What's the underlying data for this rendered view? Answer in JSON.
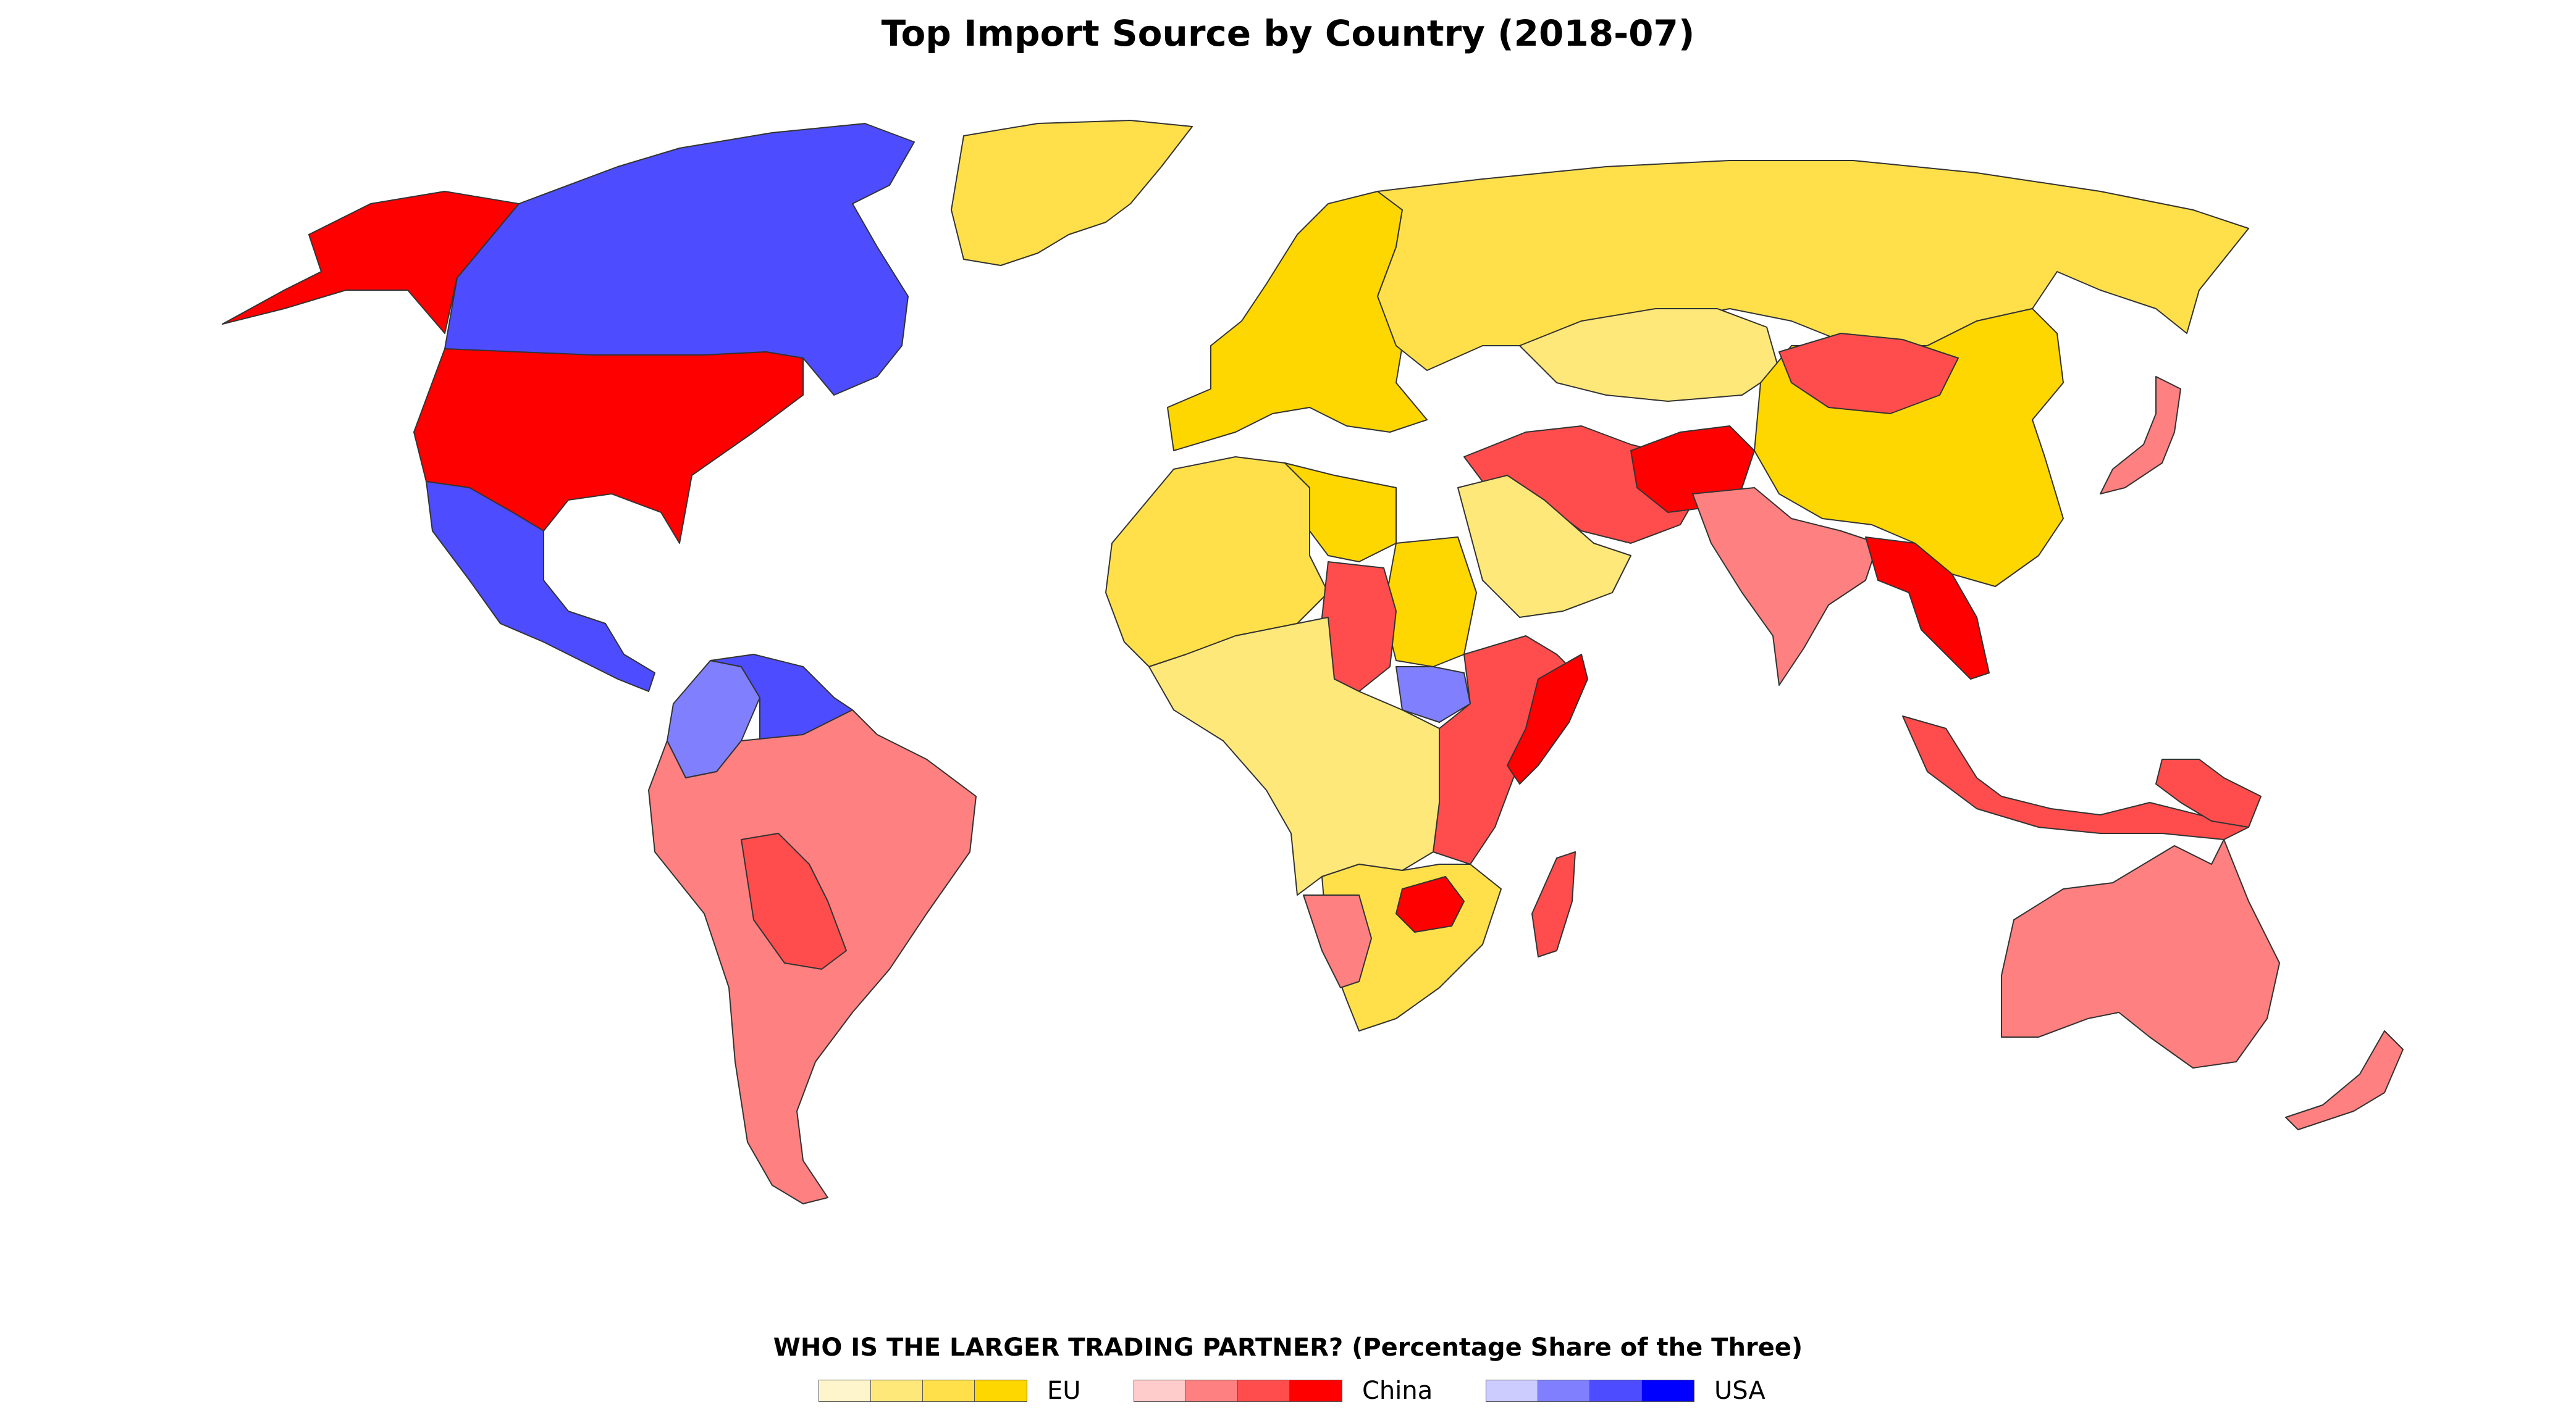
{
  "title": "Top Import Source by Country (2018-07)",
  "legend": {
    "heading": "WHO IS THE LARGER TRADING PARTNER? (Percentage Share of the Three)",
    "groups": [
      {
        "label": "EU",
        "colors": [
          "#fff5cc",
          "#ffe87a",
          "#ffe04a",
          "#ffd700"
        ]
      },
      {
        "label": "China",
        "colors": [
          "#ffcccc",
          "#ff8080",
          "#ff4d4d",
          "#ff0000"
        ]
      },
      {
        "label": "USA",
        "colors": [
          "#ccccff",
          "#8080ff",
          "#4d4dff",
          "#0000ff"
        ]
      }
    ]
  },
  "map_data": {
    "type": "choropleth",
    "regions": [
      {
        "name": "Canada",
        "partner": "USA",
        "level": 3
      },
      {
        "name": "Alaska",
        "partner": "China",
        "level": 4
      },
      {
        "name": "United States",
        "partner": "China",
        "level": 4
      },
      {
        "name": "Mexico and Central America",
        "partner": "USA",
        "level": 3
      },
      {
        "name": "Colombia",
        "partner": "USA",
        "level": 2
      },
      {
        "name": "Venezuela",
        "partner": "USA",
        "level": 3
      },
      {
        "name": "South America",
        "partner": "China",
        "level": 2
      },
      {
        "name": "Bolivia",
        "partner": "China",
        "level": 3
      },
      {
        "name": "Greenland",
        "partner": "EU",
        "level": 3
      },
      {
        "name": "Europe",
        "partner": "EU",
        "level": 4
      },
      {
        "name": "Russia",
        "partner": "EU",
        "level": 3
      },
      {
        "name": "Kazakhstan",
        "partner": "EU",
        "level": 2
      },
      {
        "name": "China",
        "partner": "EU",
        "level": 4
      },
      {
        "name": "Mongolia",
        "partner": "China",
        "level": 3
      },
      {
        "name": "Iran",
        "partner": "China",
        "level": 3
      },
      {
        "name": "Afghanistan",
        "partner": "China",
        "level": 4
      },
      {
        "name": "Saudi Arabia",
        "partner": "EU",
        "level": 2
      },
      {
        "name": "India",
        "partner": "China",
        "level": 2
      },
      {
        "name": "Southeast Asia",
        "partner": "China",
        "level": 4
      },
      {
        "name": "Indonesia",
        "partner": "China",
        "level": 3
      },
      {
        "name": "Japan",
        "partner": "China",
        "level": 2
      },
      {
        "name": "North Africa",
        "partner": "EU",
        "level": 3
      },
      {
        "name": "Libya",
        "partner": "EU",
        "level": 4
      },
      {
        "name": "Sudan",
        "partner": "EU",
        "level": 4
      },
      {
        "name": "Chad",
        "partner": "China",
        "level": 3
      },
      {
        "name": "South Sudan",
        "partner": "USA",
        "level": 2
      },
      {
        "name": "East Africa",
        "partner": "China",
        "level": 3
      },
      {
        "name": "Somalia",
        "partner": "China",
        "level": 4
      },
      {
        "name": "Central Africa",
        "partner": "EU",
        "level": 2
      },
      {
        "name": "Southern Africa",
        "partner": "EU",
        "level": 3
      },
      {
        "name": "Namibia",
        "partner": "China",
        "level": 2
      },
      {
        "name": "Zimbabwe",
        "partner": "China",
        "level": 4
      },
      {
        "name": "Madagascar",
        "partner": "China",
        "level": 3
      },
      {
        "name": "Australia",
        "partner": "China",
        "level": 2
      },
      {
        "name": "New Zealand",
        "partner": "China",
        "level": 2
      },
      {
        "name": "Papua New Guinea",
        "partner": "China",
        "level": 3
      }
    ]
  }
}
